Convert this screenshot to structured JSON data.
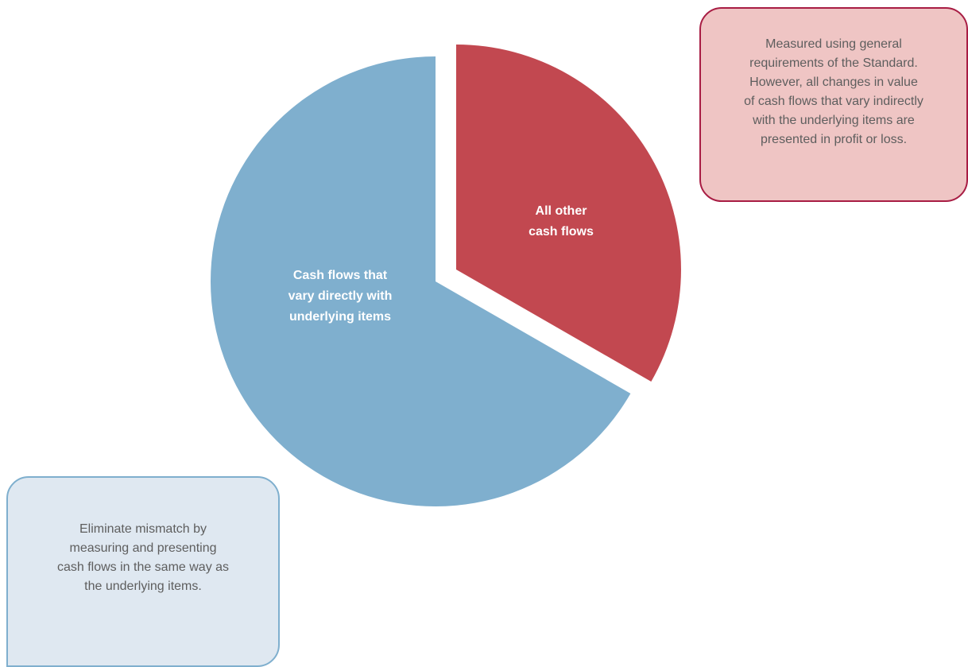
{
  "slices": [
    {
      "label": "Cash flows that\nvary directly with\nunderlying items",
      "percent": 66.7,
      "color": "#7fafce"
    },
    {
      "label": "All other\ncash flows",
      "percent": 33.3,
      "color": "#c24850"
    }
  ],
  "callouts": {
    "red": {
      "text": "Measured using general\nrequirements of the Standard.\nHowever, all changes in value\nof cash flows that vary indirectly\nwith the underlying items are\npresented in profit or loss.",
      "fill": "#efc5c4",
      "border": "#a81d44"
    },
    "blue": {
      "text": "Eliminate mismatch by\nmeasuring and presenting\ncash flows in the same way as\nthe underlying items.",
      "fill": "#dfe8f1",
      "border": "#7fafce"
    }
  }
}
